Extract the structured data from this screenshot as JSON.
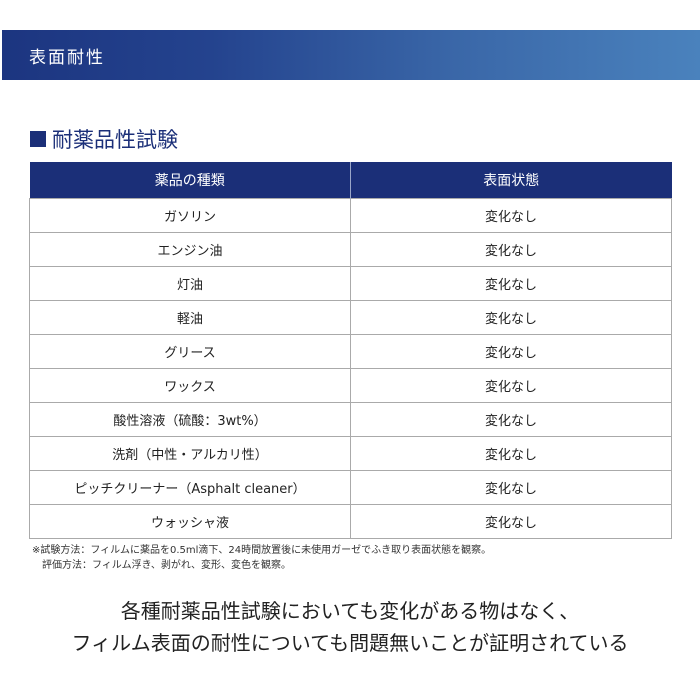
{
  "banner": {
    "title": "表面耐性"
  },
  "section": {
    "title": "耐薬品性試験"
  },
  "table": {
    "headers": [
      "薬品の種類",
      "表面状態"
    ],
    "rows": [
      [
        "ガソリン",
        "変化なし"
      ],
      [
        "エンジン油",
        "変化なし"
      ],
      [
        "灯油",
        "変化なし"
      ],
      [
        "軽油",
        "変化なし"
      ],
      [
        "グリース",
        "変化なし"
      ],
      [
        "ワックス",
        "変化なし"
      ],
      [
        "酸性溶液（硫酸：3wt%）",
        "変化なし"
      ],
      [
        "洗剤（中性・アルカリ性）",
        "変化なし"
      ],
      [
        "ピッチクリーナー（Asphalt cleaner）",
        "変化なし"
      ],
      [
        "ウォッシャ液",
        "変化なし"
      ]
    ]
  },
  "notes": [
    "※試験方法：フィルムに薬品を0.5ml滴下、24時間放置後に未使用ガーゼでふき取り表面状態を観察。",
    "評価方法：フィルム浮き、剥がれ、変形、変色を観察。"
  ],
  "message": [
    "各種耐薬品性試験においても変化がある物はなく、",
    "フィルム表面の耐性についても問題無いことが証明されている"
  ],
  "colors": {
    "navy": "#1b2f78",
    "banner_end": "#4a82bd"
  }
}
